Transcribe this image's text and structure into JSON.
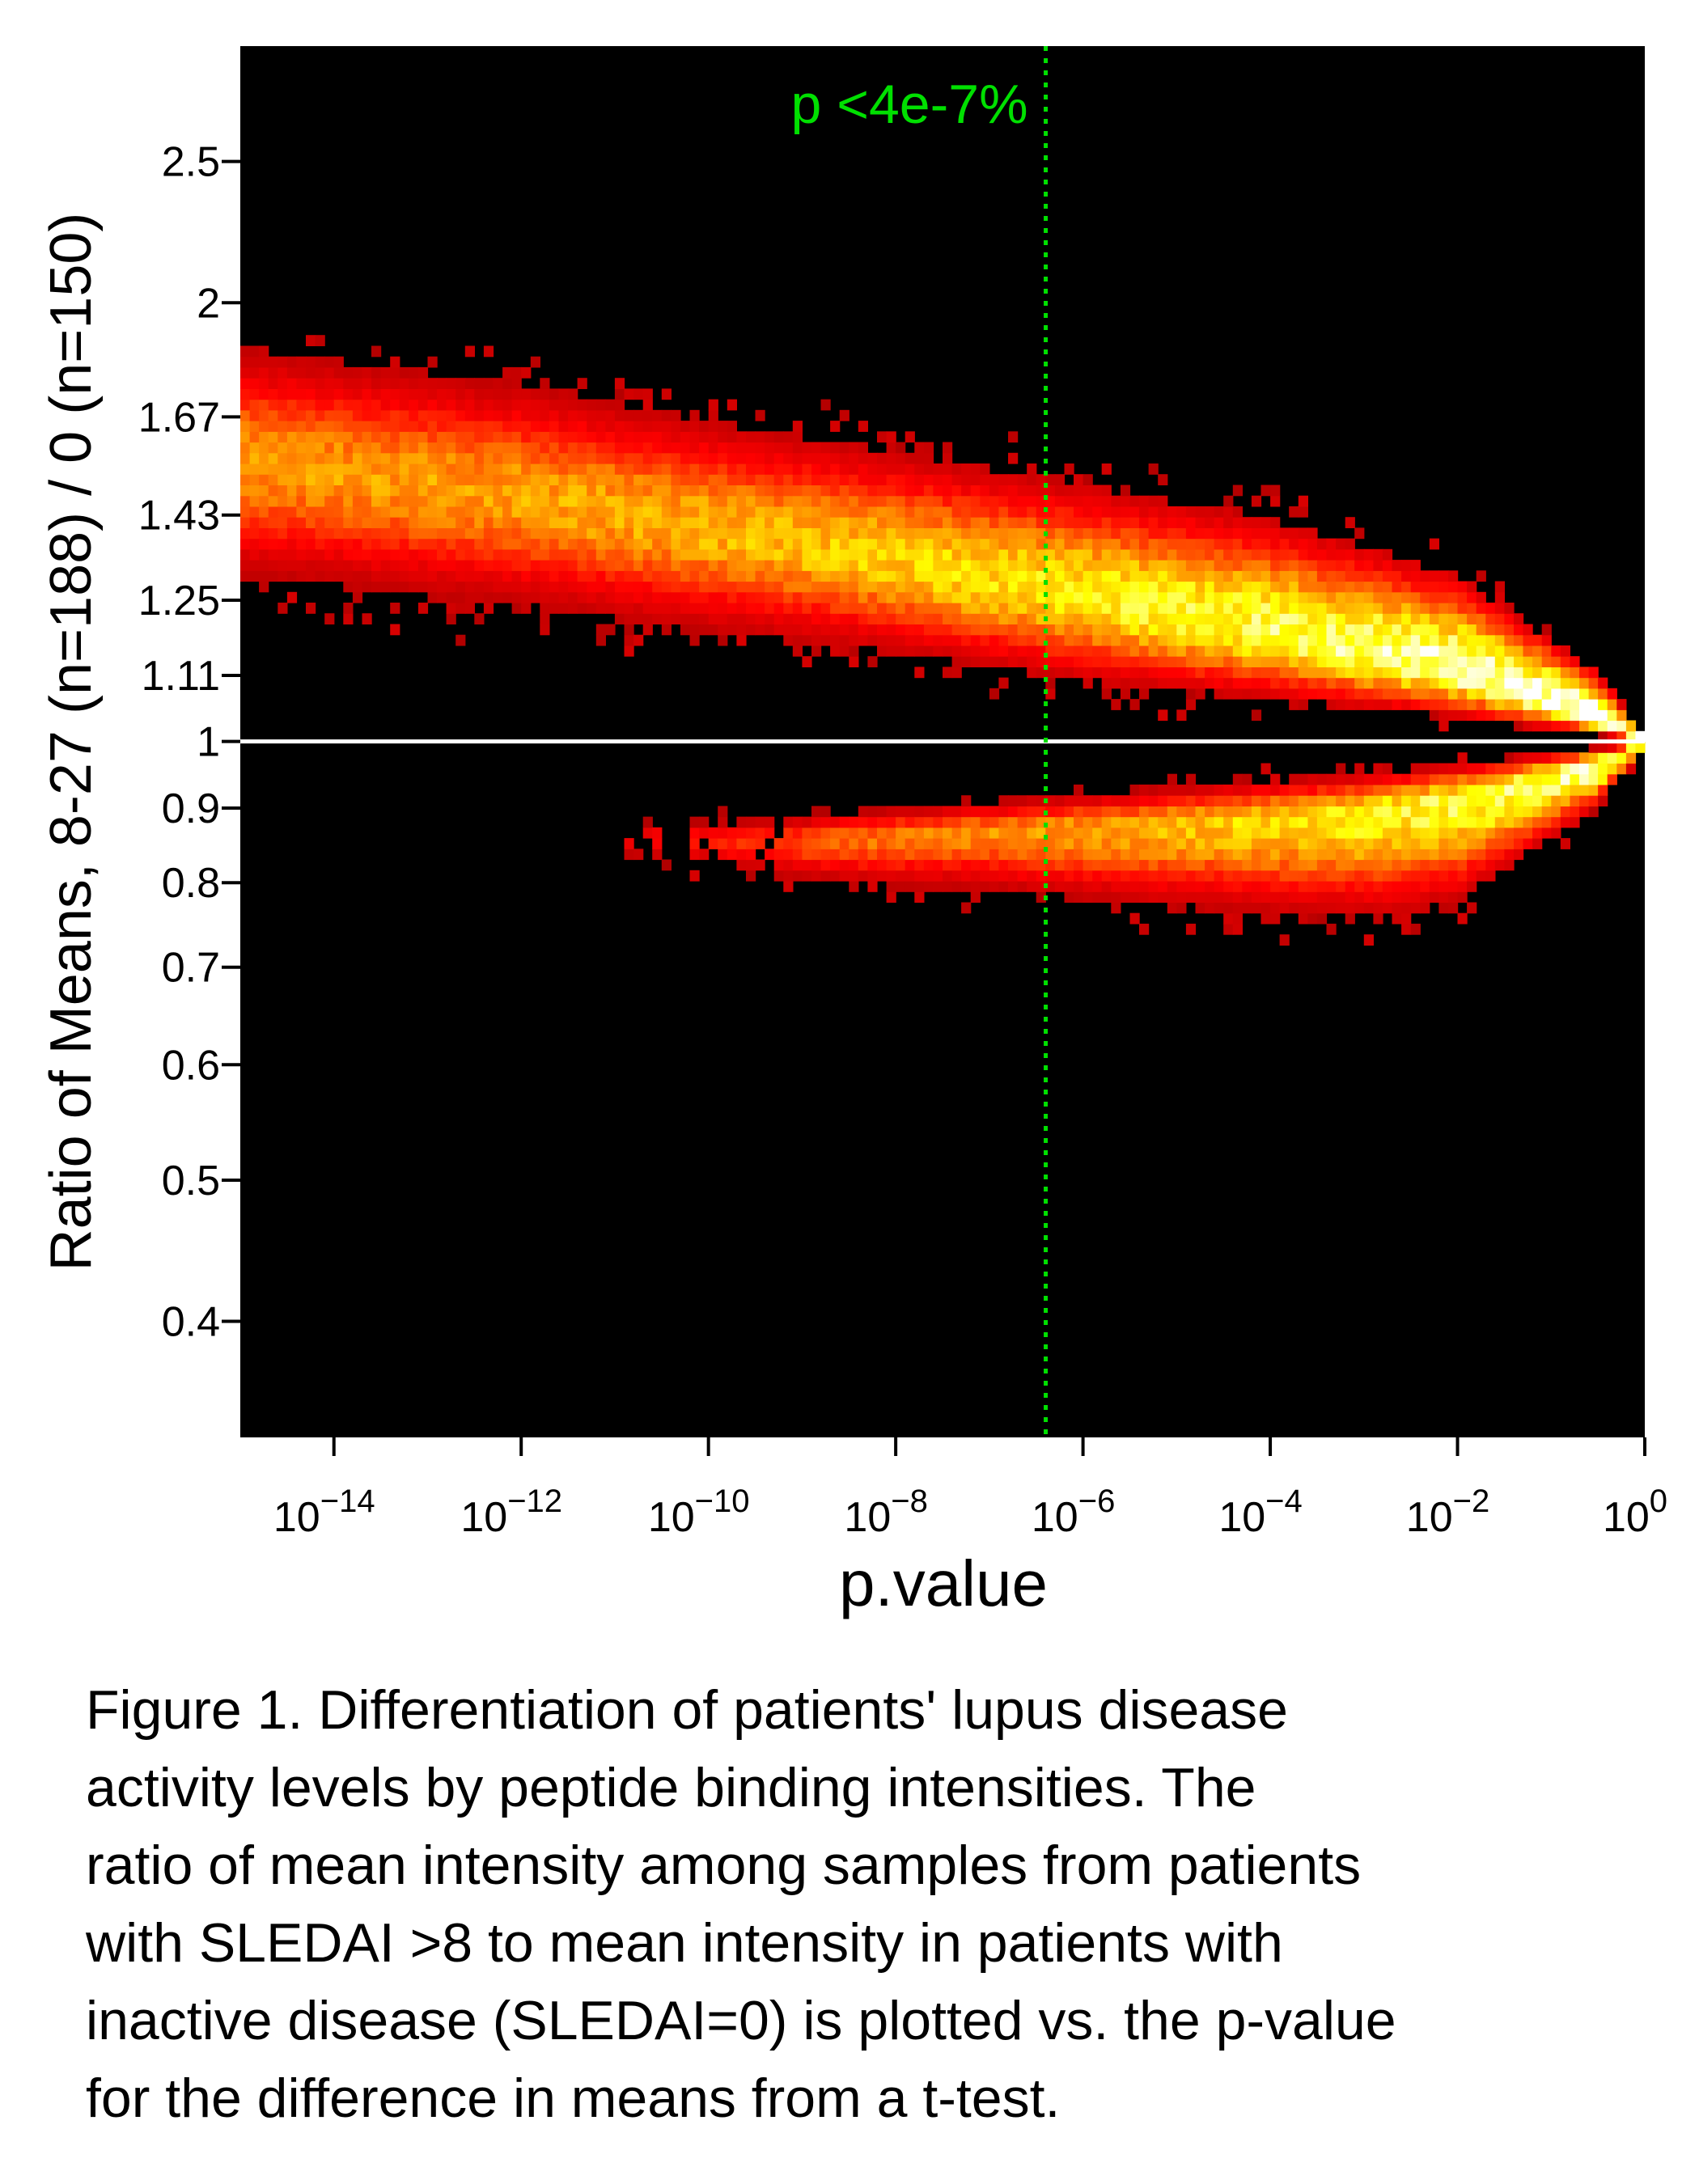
{
  "chart_data": {
    "type": "heatmap",
    "title": "",
    "xlabel": "p.value",
    "ylabel": "Ratio of Means, 8-27 (n=188) / 0 (n=150)",
    "x_scale": "log10",
    "y_scale": "log",
    "xlim": [
      1e-15,
      1
    ],
    "ylim": [
      0.333,
      3.0
    ],
    "x_ticks": [
      {
        "base": "10",
        "exp": "−14",
        "value": 1e-14
      },
      {
        "base": "10",
        "exp": "−12",
        "value": 1e-12
      },
      {
        "base": "10",
        "exp": "−10",
        "value": 1e-10
      },
      {
        "base": "10",
        "exp": "−8",
        "value": 1e-08
      },
      {
        "base": "10",
        "exp": "−6",
        "value": 1e-06
      },
      {
        "base": "10",
        "exp": "−4",
        "value": 0.0001
      },
      {
        "base": "10",
        "exp": "−2",
        "value": 0.01
      },
      {
        "base": "10",
        "exp": "0",
        "value": 1
      }
    ],
    "y_ticks": [
      {
        "label": "2.5",
        "value": 2.5
      },
      {
        "label": "2",
        "value": 2.0
      },
      {
        "label": "1.67",
        "value": 1.67
      },
      {
        "label": "1.43",
        "value": 1.43
      },
      {
        "label": "1.25",
        "value": 1.25
      },
      {
        "label": "1.11",
        "value": 1.11
      },
      {
        "label": "1",
        "value": 1.0
      },
      {
        "label": "0.9",
        "value": 0.9
      },
      {
        "label": "0.8",
        "value": 0.8
      },
      {
        "label": "0.7",
        "value": 0.7
      },
      {
        "label": "0.6",
        "value": 0.6
      },
      {
        "label": "0.5",
        "value": 0.5
      },
      {
        "label": "0.4",
        "value": 0.4
      }
    ],
    "reference_line": {
      "ratio": 1.0,
      "color": "#ffffff"
    },
    "threshold_line": {
      "p": 4e-07,
      "label": "p <4e-7%",
      "color": "#00e000",
      "style": "dotted"
    },
    "background": "#000000",
    "colormap": [
      "#a00000",
      "#ff0000",
      "#ff8000",
      "#ffff00",
      "#ffffff"
    ],
    "upper_band": [
      {
        "p": 1e-15,
        "ratio_low": 1.3,
        "ratio_center": 1.56,
        "ratio_high": 1.86
      },
      {
        "p": 1e-12,
        "ratio_low": 1.24,
        "ratio_center": 1.47,
        "ratio_high": 1.76
      },
      {
        "p": 1e-10,
        "ratio_low": 1.19,
        "ratio_center": 1.4,
        "ratio_high": 1.66
      },
      {
        "p": 1e-08,
        "ratio_low": 1.15,
        "ratio_center": 1.33,
        "ratio_high": 1.58
      },
      {
        "p": 1e-06,
        "ratio_low": 1.1,
        "ratio_center": 1.26,
        "ratio_high": 1.5
      },
      {
        "p": 0.0001,
        "ratio_low": 1.07,
        "ratio_center": 1.19,
        "ratio_high": 1.42
      },
      {
        "p": 0.01,
        "ratio_low": 1.04,
        "ratio_center": 1.12,
        "ratio_high": 1.3
      },
      {
        "p": 0.3,
        "ratio_low": 1.01,
        "ratio_center": 1.04,
        "ratio_high": 1.12
      },
      {
        "p": 1,
        "ratio_low": 1.0,
        "ratio_center": 1.0,
        "ratio_high": 1.01
      }
    ],
    "lower_band": [
      {
        "p": 1e-11,
        "ratio_low": 0.83,
        "ratio_center": 0.86,
        "ratio_high": 0.88
      },
      {
        "p": 1e-09,
        "ratio_low": 0.8,
        "ratio_center": 0.855,
        "ratio_high": 0.89
      },
      {
        "p": 1e-07,
        "ratio_low": 0.79,
        "ratio_center": 0.865,
        "ratio_high": 0.91
      },
      {
        "p": 1e-05,
        "ratio_low": 0.77,
        "ratio_center": 0.875,
        "ratio_high": 0.93
      },
      {
        "p": 0.001,
        "ratio_low": 0.76,
        "ratio_center": 0.89,
        "ratio_high": 0.95
      },
      {
        "p": 0.01,
        "ratio_low": 0.78,
        "ratio_center": 0.91,
        "ratio_high": 0.965
      },
      {
        "p": 0.3,
        "ratio_low": 0.9,
        "ratio_center": 0.96,
        "ratio_high": 0.99
      },
      {
        "p": 1,
        "ratio_low": 0.99,
        "ratio_center": 1.0,
        "ratio_high": 1.0
      }
    ]
  },
  "caption": {
    "lines": [
      "Figure 1. Differentiation of patients' lupus disease",
      "activity levels by peptide binding intensities. The",
      "ratio of mean intensity among samples from patients",
      "with SLEDAI >8 to mean intensity in patients with",
      "inactive disease (SLEDAI=0) is plotted vs. the p-value",
      "for the difference in means from a t-test."
    ]
  }
}
